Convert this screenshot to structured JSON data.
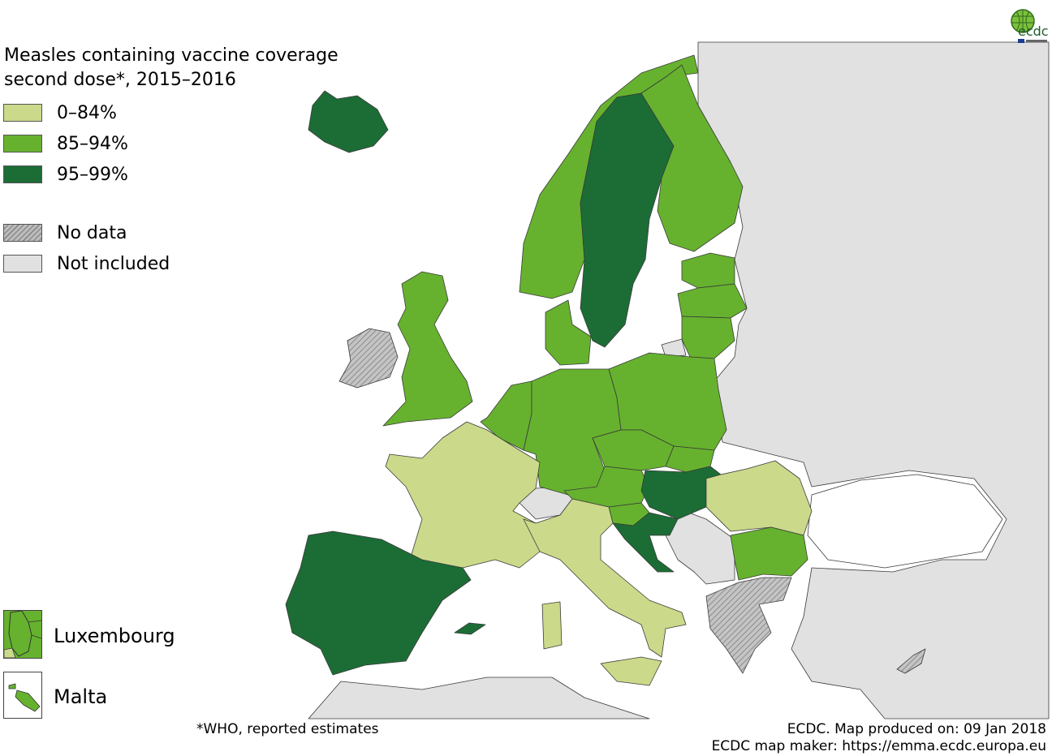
{
  "title": "Measles containing vaccine coverage second dose*, 2015–2016",
  "title_lines": [
    "Measles containing vaccine coverage",
    "second dose*, 2015–2016"
  ],
  "legend": [
    {
      "label": "0–84%",
      "color": "#cbd98a"
    },
    {
      "label": "85–94%",
      "color": "#66b22e"
    },
    {
      "label": "95–99%",
      "color": "#1b6d35"
    },
    {
      "label": "No data",
      "pattern": "hatched",
      "color": "#b5b5b5"
    },
    {
      "label": "Not included",
      "color": "#e1e1e1"
    }
  ],
  "insets": [
    {
      "label": "Luxembourg",
      "class": "85–94%"
    },
    {
      "label": "Malta",
      "class": "85–94%"
    }
  ],
  "countries": {
    "Iceland": "95–99%",
    "Norway": "85–94%",
    "Sweden": "95–99%",
    "Finland": "85–94%",
    "Estonia": "85–94%",
    "Latvia": "85–94%",
    "Lithuania": "85–94%",
    "Denmark": "85–94%",
    "United Kingdom": "85–94%",
    "Ireland": "No data",
    "Netherlands": "85–94%",
    "Belgium": "85–94%",
    "Germany": "85–94%",
    "Poland": "85–94%",
    "Czechia": "85–94%",
    "Slovakia": "85–94%",
    "Austria": "85–94%",
    "Hungary": "95–99%",
    "Slovenia": "85–94%",
    "Croatia": "95–99%",
    "Romania": "0–84%",
    "Bulgaria": "85–94%",
    "Greece": "No data",
    "Cyprus": "No data",
    "France": "0–84%",
    "Spain": "95–99%",
    "Portugal": "95–99%",
    "Italy": "0–84%"
  },
  "colors": {
    "sea": "#ffffff",
    "not_included": "#e1e1e1",
    "border": "#3a3a3a"
  },
  "footnote": "*WHO, reported estimates",
  "credit_line1": "ECDC. Map produced on: 09 Jan 2018",
  "credit_line2": "ECDC map maker: https://emma.ecdc.europa.eu",
  "logo_text": "ecdc"
}
